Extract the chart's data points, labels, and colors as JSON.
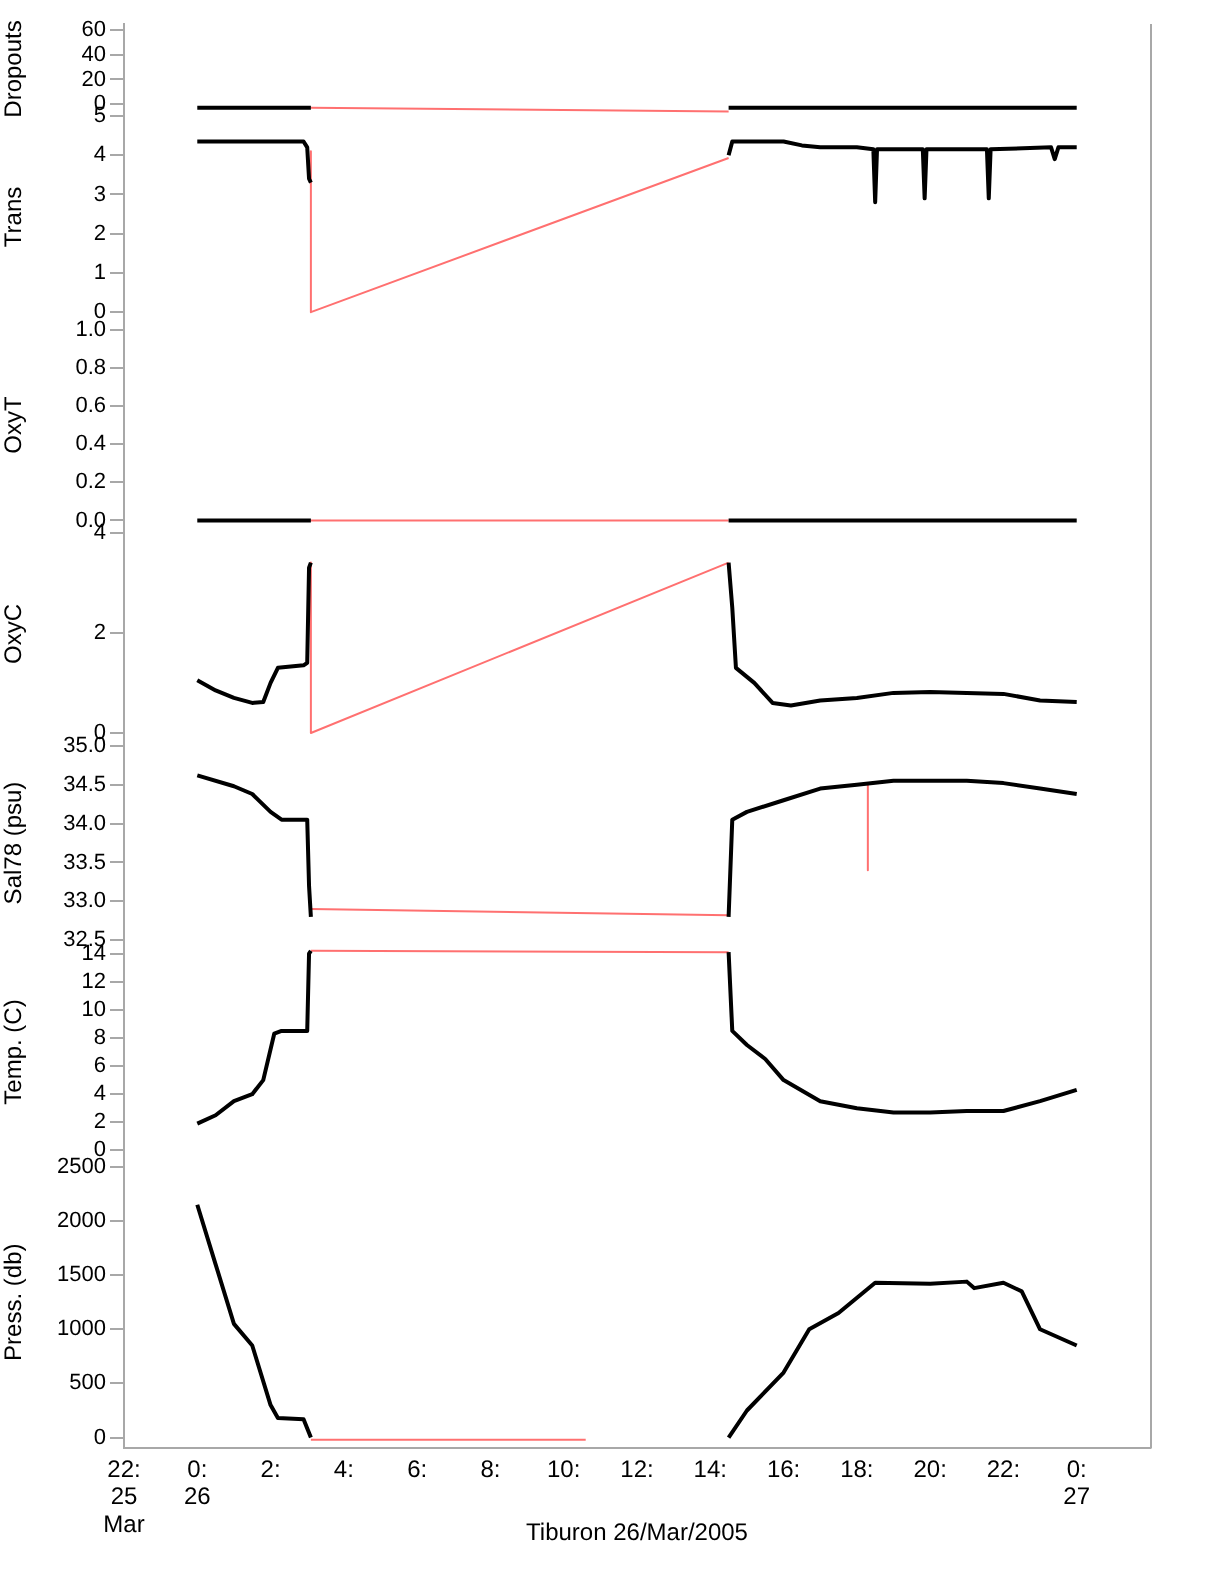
{
  "chart_data": [
    {
      "type": "line",
      "ylabel": "Dropouts",
      "xlim": [
        -2,
        26
      ],
      "ylim": [
        -8,
        65
      ],
      "yticks": [
        0,
        20,
        40,
        60
      ],
      "tick_labels": "y",
      "series": [
        {
          "color": "#000000",
          "x": [
            0,
            3.1,
            8.8,
            14.5,
            24
          ],
          "values": [
            -3,
            -3,
            null,
            -3,
            -3
          ]
        },
        {
          "color": "#ff7070",
          "x": [
            3.1,
            14.5
          ],
          "values": [
            -3,
            -6
          ]
        }
      ]
    },
    {
      "type": "line",
      "ylabel": "Trans",
      "xlim": [
        -2,
        26
      ],
      "ylim": [
        -0.2,
        5.05
      ],
      "yticks": [
        0,
        1,
        2,
        3,
        4,
        5
      ],
      "tick_labels": "y",
      "series": [
        {
          "color": "#000000",
          "x": [
            0,
            2.9,
            3.0,
            3.05,
            3.1,
            8.8,
            14.5,
            14.6,
            16,
            16.5,
            17,
            18,
            18.45,
            18.5,
            18.55,
            19.8,
            19.85,
            19.9,
            21.55,
            21.6,
            21.65,
            23.3,
            23.4,
            23.5,
            24
          ],
          "values": [
            4.35,
            4.35,
            4.2,
            3.4,
            3.3,
            null,
            4.0,
            4.35,
            4.35,
            4.25,
            4.2,
            4.2,
            4.15,
            2.8,
            4.15,
            4.15,
            2.9,
            4.15,
            4.15,
            2.9,
            4.15,
            4.2,
            3.9,
            4.2,
            4.2
          ]
        },
        {
          "color": "#ff7070",
          "x": [
            3.1,
            3.1,
            14.5
          ],
          "values": [
            4.1,
            0,
            3.93
          ]
        }
      ]
    },
    {
      "type": "line",
      "ylabel": "OxyT",
      "xlim": [
        -2,
        26
      ],
      "ylim": [
        -0.05,
        1.05
      ],
      "yticks": [
        {
          "value": 0,
          "label": "0.0"
        },
        {
          "value": 0.2,
          "label": "0.2"
        },
        {
          "value": 0.4,
          "label": "0.4"
        },
        {
          "value": 0.6,
          "label": "0.6"
        },
        {
          "value": 0.8,
          "label": "0.8"
        },
        {
          "value": 1,
          "label": "1.0"
        }
      ],
      "tick_labels": "y",
      "series": [
        {
          "color": "#000000",
          "x": [
            0,
            3.1,
            8.8,
            14.5,
            24
          ],
          "values": [
            0,
            0,
            null,
            0,
            0
          ]
        },
        {
          "color": "#ff7070",
          "x": [
            3.1,
            14.5
          ],
          "values": [
            0,
            0
          ]
        }
      ]
    },
    {
      "type": "line",
      "ylabel": "OxyC",
      "xlim": [
        -2,
        26
      ],
      "ylim": [
        -0.1,
        4.05
      ],
      "yticks": [
        0,
        2,
        4
      ],
      "tick_labels": "y",
      "series": [
        {
          "color": "#000000",
          "x": [
            0,
            0.5,
            1,
            1.5,
            1.8,
            2.0,
            2.2,
            2.9,
            3.0,
            3.05,
            3.1,
            8.8,
            14.5,
            14.6,
            14.7,
            15.2,
            15.7,
            16.2,
            17,
            18,
            19,
            20,
            21,
            22,
            23,
            24
          ],
          "values": [
            1.05,
            0.85,
            0.7,
            0.6,
            0.62,
            1.0,
            1.3,
            1.35,
            1.4,
            3.3,
            3.4,
            null,
            3.4,
            2.5,
            1.3,
            1.0,
            0.6,
            0.55,
            0.65,
            0.7,
            0.8,
            0.82,
            0.8,
            0.78,
            0.65,
            0.62
          ]
        },
        {
          "color": "#ff7070",
          "x": [
            3.1,
            3.1,
            14.5
          ],
          "values": [
            3.4,
            0,
            3.4
          ]
        }
      ]
    },
    {
      "type": "line",
      "ylabel": "Sal78 (psu)",
      "xlim": [
        -2,
        26
      ],
      "ylim": [
        32.4,
        35.1
      ],
      "yticks": [
        32.5,
        {
          "value": 33,
          "label": "33.0"
        },
        33.5,
        {
          "value": 34,
          "label": "34.0"
        },
        34.5,
        {
          "value": 35,
          "label": "35.0"
        }
      ],
      "tick_labels": "y",
      "series": [
        {
          "color": "#000000",
          "x": [
            0,
            1,
            1.5,
            2,
            2.3,
            3.0,
            3.05,
            3.1,
            8.8,
            14.5,
            14.6,
            15,
            16,
            17,
            18,
            19,
            20,
            21,
            22,
            23,
            24
          ],
          "values": [
            34.62,
            34.48,
            34.38,
            34.15,
            34.05,
            34.05,
            33.2,
            32.8,
            null,
            32.8,
            34.05,
            34.15,
            34.3,
            34.45,
            34.5,
            34.55,
            34.55,
            34.55,
            34.52,
            34.45,
            34.38
          ]
        },
        {
          "color": "#ff7070",
          "x": [
            3.1,
            14.5,
            16,
            18.3,
            18.3
          ],
          "values": [
            32.9,
            32.82,
            null,
            34.5,
            33.4
          ]
        }
      ]
    },
    {
      "type": "line",
      "ylabel": "Temp. (C)",
      "xlim": [
        -2,
        26
      ],
      "ylim": [
        -0.4,
        14.4
      ],
      "yticks": [
        0,
        2,
        4,
        6,
        8,
        10,
        12,
        14
      ],
      "tick_labels": "y",
      "series": [
        {
          "color": "#000000",
          "x": [
            0,
            0.5,
            1,
            1.5,
            1.8,
            2.1,
            2.3,
            3.0,
            3.05,
            3.1,
            8.8,
            14.5,
            14.6,
            15,
            15.5,
            16,
            17,
            18,
            19,
            20,
            21,
            22,
            23,
            24
          ],
          "values": [
            1.9,
            2.5,
            3.5,
            4.0,
            5.0,
            8.3,
            8.5,
            8.5,
            14.0,
            14.2,
            null,
            14.1,
            8.5,
            7.5,
            6.5,
            5.0,
            3.5,
            3.0,
            2.7,
            2.7,
            2.8,
            2.8,
            3.5,
            4.3
          ]
        },
        {
          "color": "#ff7070",
          "x": [
            3.1,
            14.5
          ],
          "values": [
            14.2,
            14.1
          ]
        }
      ]
    },
    {
      "type": "line",
      "ylabel": "Press. (db)",
      "xlabel": "Tiburon 26/Mar/2005",
      "xlim": [
        -2,
        26
      ],
      "xticks": [
        {
          "value": -2,
          "label": "22:\n25\nMar"
        },
        {
          "value": 0,
          "label": "0:\n26"
        },
        {
          "value": 2,
          "label": "2:"
        },
        {
          "value": 4,
          "label": "4:"
        },
        {
          "value": 6,
          "label": "6:"
        },
        {
          "value": 8,
          "label": "8:"
        },
        {
          "value": 10,
          "label": "10:"
        },
        {
          "value": 12,
          "label": "12:"
        },
        {
          "value": 14,
          "label": "14:"
        },
        {
          "value": 16,
          "label": "16:"
        },
        {
          "value": 18,
          "label": "18:"
        },
        {
          "value": 20,
          "label": "20:"
        },
        {
          "value": 22,
          "label": "22:"
        },
        {
          "value": 24,
          "label": "0:\n27"
        }
      ],
      "ylim": [
        -100,
        2600
      ],
      "yticks": [
        0,
        500,
        1000,
        1500,
        2000,
        2500
      ],
      "series": [
        {
          "color": "#000000",
          "x": [
            0,
            0.5,
            1,
            1.5,
            2,
            2.2,
            2.9,
            3.1,
            8.8,
            14.5,
            15,
            16,
            16.7,
            17.5,
            18.5,
            20,
            21,
            21.2,
            22,
            22.5,
            23,
            24
          ],
          "values": [
            2150,
            1600,
            1050,
            850,
            300,
            180,
            170,
            0,
            null,
            0,
            250,
            600,
            1000,
            1150,
            1430,
            1420,
            1440,
            1380,
            1430,
            1350,
            1000,
            850
          ]
        },
        {
          "color": "#ff7070",
          "x": [
            3.1,
            10.6
          ],
          "values": [
            -20,
            -20
          ]
        }
      ]
    }
  ]
}
